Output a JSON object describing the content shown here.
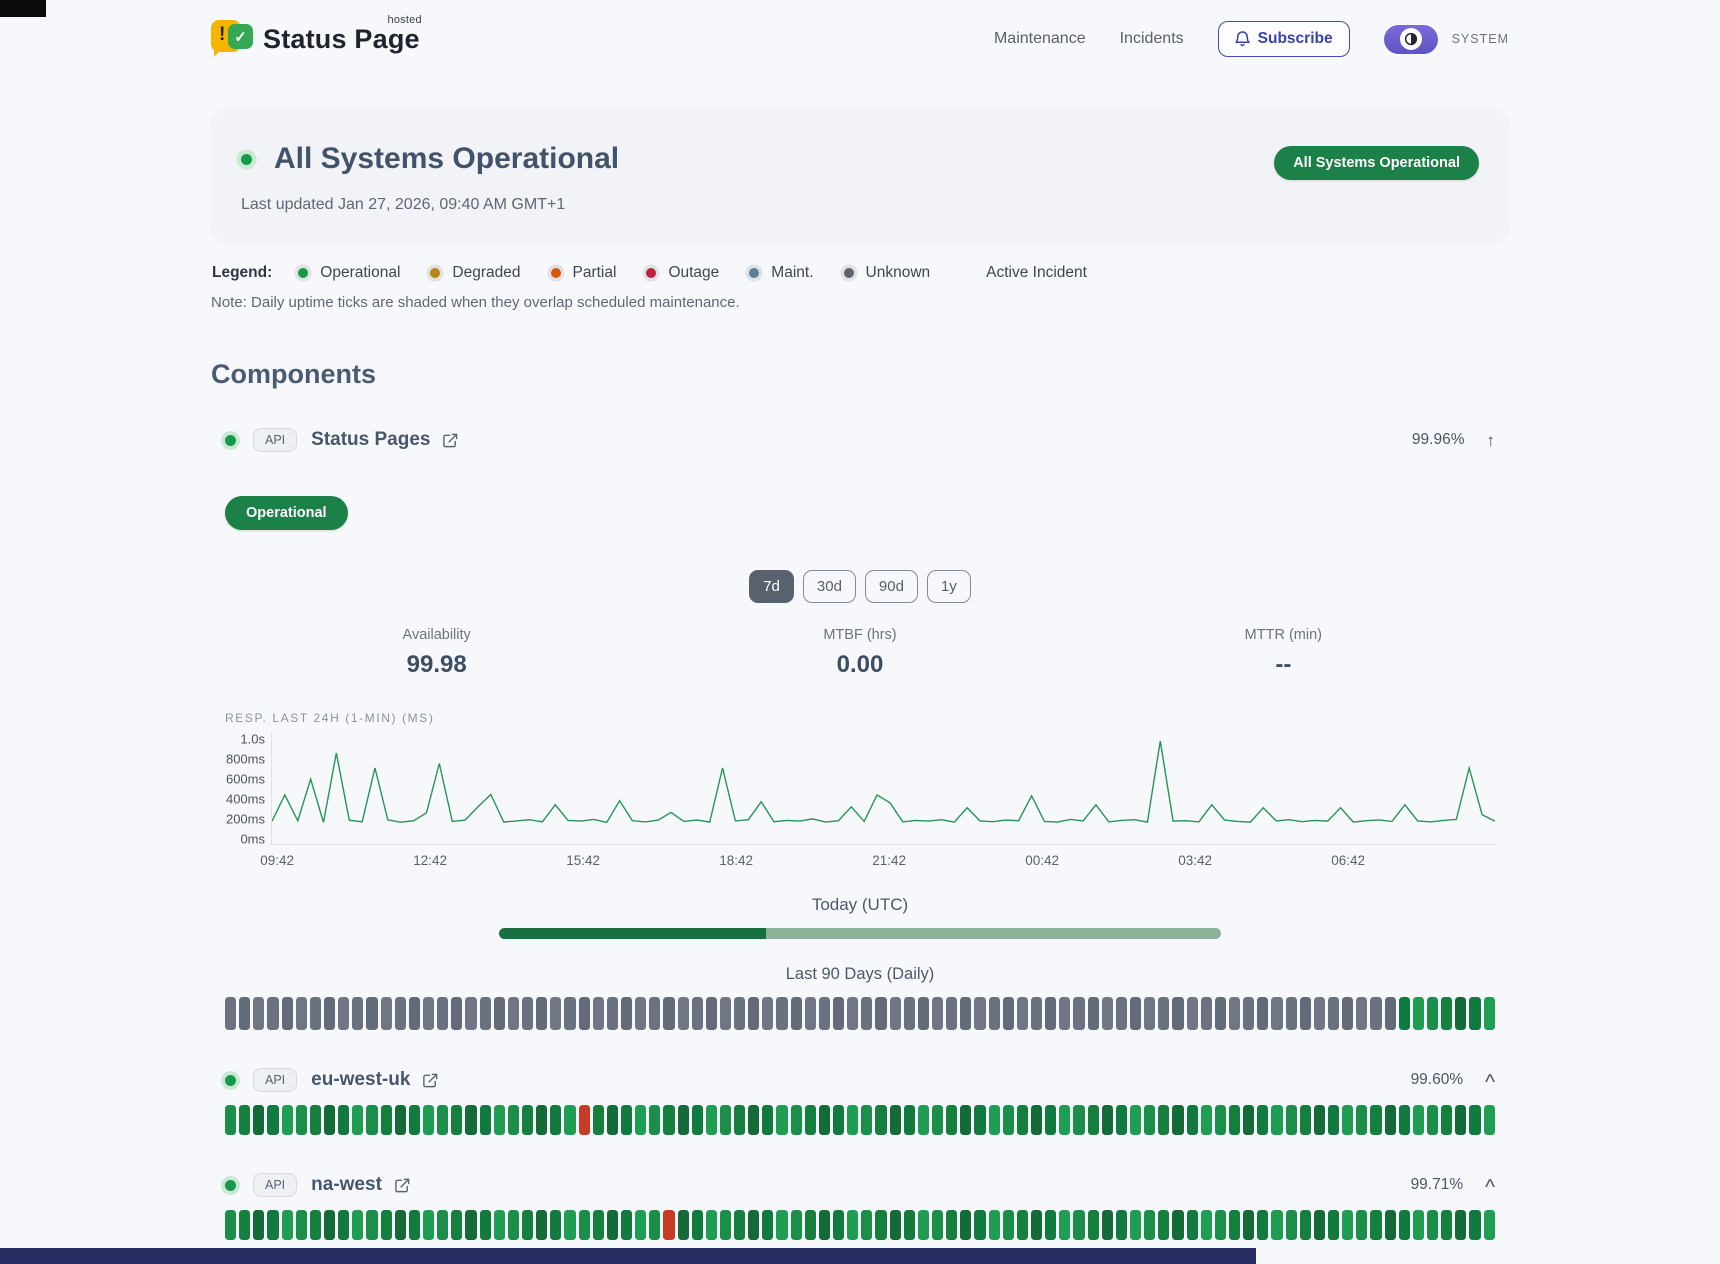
{
  "header": {
    "brand": {
      "name": "Status Page",
      "superscript": "hosted"
    },
    "nav": [
      {
        "label": "Maintenance"
      },
      {
        "label": "Incidents"
      }
    ],
    "subscribe_label": "Subscribe",
    "theme_toggle_label": "SYSTEM",
    "icons": {
      "subscribe": "bell-icon",
      "theme_knob": "contrast-icon",
      "logo": "speech-bubble-check-icon"
    }
  },
  "hero": {
    "title": "All Systems Operational",
    "updated": "Last updated Jan 27, 2026, 09:40 AM GMT+1",
    "badge": "All Systems Operational"
  },
  "legend": {
    "label": "Legend:",
    "items": [
      {
        "label": "Operational",
        "color": "#169a49"
      },
      {
        "label": "Degraded",
        "color": "#b8860b"
      },
      {
        "label": "Partial",
        "color": "#d2590e"
      },
      {
        "label": "Outage",
        "color": "#c11f3b"
      },
      {
        "label": "Maint.",
        "color": "#5b7f95"
      },
      {
        "label": "Unknown",
        "color": "#5c636e"
      }
    ],
    "active_incident_label": "Active Incident",
    "note": "Note: Daily uptime ticks are shaded when they overlap scheduled maintenance."
  },
  "components_section_title": "Components",
  "tick_palettes": {
    "u": [
      "#6a7280",
      "#646b78",
      "#707683"
    ],
    "g": [
      "#15803d",
      "#1f9d52",
      "#156b38",
      "#1b8f4a",
      "#117a3e"
    ],
    "r": [
      "#c63b26"
    ]
  },
  "toggle_glyphs": {
    "arrow-up": "↑",
    "chevron-up": "^"
  },
  "components": [
    {
      "tag": "API",
      "name": "Status Pages",
      "availability_pct": "99.96%",
      "toggle_icon": "arrow-up",
      "status_badge": "Operational",
      "range_buttons": [
        {
          "label": "7d",
          "active": true
        },
        {
          "label": "30d",
          "active": false
        },
        {
          "label": "90d",
          "active": false
        },
        {
          "label": "1y",
          "active": false
        }
      ],
      "metrics": [
        {
          "label": "Availability",
          "value": "99.98"
        },
        {
          "label": "MTBF (hrs)",
          "value": "0.00"
        },
        {
          "label": "MTTR (min)",
          "value": "--"
        }
      ],
      "chart_data": {
        "type": "line",
        "title": "RESP. LAST 24H (1-MIN) (MS)",
        "line_color": "#27945a",
        "ylim": [
          0,
          1000
        ],
        "unit": "ms",
        "y_ticks": [
          {
            "label": "1.0s",
            "value": 1000
          },
          {
            "label": "800ms",
            "value": 800
          },
          {
            "label": "600ms",
            "value": 600
          },
          {
            "label": "400ms",
            "value": 400
          },
          {
            "label": "200ms",
            "value": 200
          },
          {
            "label": "0ms",
            "value": 0
          }
        ],
        "x_ticks": [
          "09:42",
          "12:42",
          "15:42",
          "18:42",
          "21:42",
          "00:42",
          "03:42",
          "06:42"
        ],
        "values": [
          168,
          430,
          172,
          590,
          156,
          850,
          178,
          162,
          700,
          181,
          158,
          173,
          252,
          745,
          166,
          179,
          312,
          435,
          159,
          171,
          183,
          161,
          332,
          176,
          169,
          186,
          157,
          372,
          173,
          161,
          179,
          256,
          166,
          181,
          159,
          700,
          171,
          183,
          362,
          163,
          176,
          169,
          191,
          159,
          173,
          312,
          166,
          430,
          352,
          161,
          176,
          169,
          183,
          159,
          302,
          171,
          163,
          179,
          173,
          422,
          166,
          159,
          186,
          171,
          332,
          161,
          176,
          183,
          159,
          970,
          169,
          173,
          161,
          332,
          179,
          166,
          159,
          302,
          171,
          183,
          163,
          176,
          169,
          302,
          159,
          173,
          181,
          166,
          332,
          171,
          161,
          176,
          186,
          700,
          232,
          169
        ]
      },
      "today": {
        "label": "Today (UTC)",
        "progress_pct": 37
      },
      "history": {
        "label": "Last 90 Days (Daily)",
        "ticks": "uuuuuuuuuuuuuuuuuuuuuuuuuuuuuuuuuuuuuuuuuuuuuuuuuuuuuuuuuuuuuuuuuuuuuuuuuuuuuuuuuuuggggggg"
      }
    },
    {
      "tag": "API",
      "name": "eu-west-uk",
      "availability_pct": "99.60%",
      "toggle_icon": "chevron-up",
      "ticks": "gggggggggggggggggggggggggrgggggggggggggggggggggggggggggggggggggggggggggggggggggggggggggggg"
    },
    {
      "tag": "API",
      "name": "na-west",
      "availability_pct": "99.71%",
      "toggle_icon": "chevron-up",
      "ticks": "gggggggggggggggggggggggggggggggrgggggggggggggggggggggggggggggggggggggggggggggggggggggggggg"
    }
  ]
}
